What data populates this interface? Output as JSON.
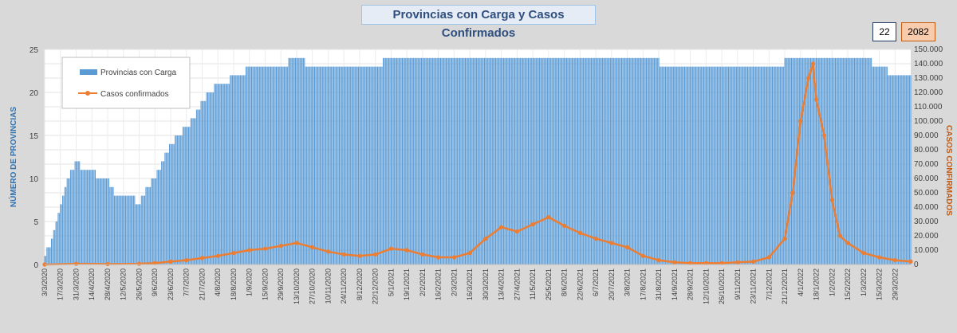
{
  "chart_data": {
    "type": "bar",
    "title": "Provincias con Carga y Casos Confirmados",
    "badges": {
      "provinces": "22",
      "cases": "2082"
    },
    "ylabel": "NÚMERO DE PROVINCIAS",
    "y2label": "CASOS CONFIRMADOS",
    "ylim": [
      0,
      25
    ],
    "y2lim": [
      0,
      150000
    ],
    "yticks": [
      "0",
      "5",
      "10",
      "15",
      "20",
      "25"
    ],
    "y2ticks": [
      "0",
      "10.000",
      "20.000",
      "30.000",
      "40.000",
      "50.000",
      "60.000",
      "70.000",
      "80.000",
      "90.000",
      "100.000",
      "110.000",
      "120.000",
      "130.000",
      "140.000",
      "150.000"
    ],
    "grid": true,
    "legend": "top-left",
    "x_start": "3/3/2020",
    "x_end": "12/4/2022",
    "xticks": [
      "3/3/2020",
      "17/3/2020",
      "31/3/2020",
      "14/4/2020",
      "28/4/2020",
      "12/5/2020",
      "26/5/2020",
      "9/6/2020",
      "23/6/2020",
      "7/7/2020",
      "21/7/2020",
      "4/8/2020",
      "18/8/2020",
      "1/9/2020",
      "15/9/2020",
      "29/9/2020",
      "13/10/2020",
      "27/10/2020",
      "10/11/2020",
      "24/11/2020",
      "8/12/2020",
      "22/12/2020",
      "5/1/2021",
      "19/1/2021",
      "2/2/2021",
      "16/2/2021",
      "2/3/2021",
      "16/3/2021",
      "30/3/2021",
      "13/4/2021",
      "27/4/2021",
      "11/5/2021",
      "25/5/2021",
      "8/6/2021",
      "22/6/2021",
      "6/7/2021",
      "20/7/2021",
      "3/8/2021",
      "17/8/2021",
      "31/8/2021",
      "14/9/2021",
      "28/9/2021",
      "12/10/2021",
      "26/10/2021",
      "9/11/2021",
      "23/11/2021",
      "7/12/2021",
      "21/12/2021",
      "4/1/2022",
      "18/1/2022",
      "1/2/2022",
      "15/2/2022",
      "1/3/2022",
      "15/3/2022",
      "29/3/2022"
    ],
    "series": [
      {
        "name": "Provincias con Carga",
        "axis": "left",
        "color": "#5b9bd5",
        "points": [
          [
            "3/3/2020",
            1
          ],
          [
            "10/3/2020",
            3
          ],
          [
            "17/3/2020",
            7
          ],
          [
            "24/3/2020",
            10
          ],
          [
            "31/3/2020",
            12
          ],
          [
            "7/4/2020",
            11
          ],
          [
            "14/4/2020",
            11
          ],
          [
            "21/4/2020",
            10
          ],
          [
            "28/4/2020",
            10
          ],
          [
            "5/5/2020",
            8
          ],
          [
            "12/5/2020",
            8
          ],
          [
            "19/5/2020",
            8
          ],
          [
            "26/5/2020",
            7
          ],
          [
            "2/6/2020",
            9
          ],
          [
            "9/6/2020",
            10
          ],
          [
            "16/6/2020",
            12
          ],
          [
            "23/6/2020",
            14
          ],
          [
            "30/6/2020",
            15
          ],
          [
            "7/7/2020",
            16
          ],
          [
            "14/7/2020",
            17
          ],
          [
            "21/7/2020",
            19
          ],
          [
            "28/7/2020",
            20
          ],
          [
            "4/8/2020",
            21
          ],
          [
            "11/8/2020",
            21
          ],
          [
            "18/8/2020",
            22
          ],
          [
            "25/8/2020",
            22
          ],
          [
            "1/9/2020",
            23
          ],
          [
            "8/9/2020",
            23
          ],
          [
            "15/9/2020",
            23
          ],
          [
            "22/9/2020",
            23
          ],
          [
            "29/9/2020",
            23
          ],
          [
            "13/10/2020",
            24
          ],
          [
            "27/10/2020",
            23
          ],
          [
            "10/11/2020",
            23
          ],
          [
            "24/11/2020",
            23
          ],
          [
            "8/12/2020",
            23
          ],
          [
            "22/12/2020",
            23
          ],
          [
            "5/1/2021",
            24
          ],
          [
            "19/1/2021",
            24
          ],
          [
            "2/2/2021",
            24
          ],
          [
            "2/3/2021",
            24
          ],
          [
            "30/3/2021",
            24
          ],
          [
            "27/4/2021",
            24
          ],
          [
            "25/5/2021",
            24
          ],
          [
            "22/6/2021",
            24
          ],
          [
            "20/7/2021",
            24
          ],
          [
            "17/8/2021",
            24
          ],
          [
            "14/9/2021",
            23
          ],
          [
            "12/10/2021",
            23
          ],
          [
            "9/11/2021",
            23
          ],
          [
            "7/12/2021",
            23
          ],
          [
            "4/1/2022",
            24
          ],
          [
            "1/2/2022",
            24
          ],
          [
            "1/3/2022",
            24
          ],
          [
            "15/3/2022",
            23
          ],
          [
            "29/3/2022",
            22
          ],
          [
            "12/4/2022",
            22
          ]
        ]
      },
      {
        "name": "Casos confirmados",
        "axis": "right",
        "color": "#ed7d31",
        "points": [
          [
            "3/3/2020",
            0
          ],
          [
            "31/3/2020",
            500
          ],
          [
            "28/4/2020",
            300
          ],
          [
            "26/5/2020",
            500
          ],
          [
            "9/6/2020",
            1000
          ],
          [
            "23/6/2020",
            2000
          ],
          [
            "7/7/2020",
            3000
          ],
          [
            "21/7/2020",
            4500
          ],
          [
            "4/8/2020",
            6000
          ],
          [
            "18/8/2020",
            8000
          ],
          [
            "1/9/2020",
            10000
          ],
          [
            "15/9/2020",
            11000
          ],
          [
            "29/9/2020",
            13000
          ],
          [
            "13/10/2020",
            15000
          ],
          [
            "27/10/2020",
            12000
          ],
          [
            "10/11/2020",
            9000
          ],
          [
            "24/11/2020",
            7000
          ],
          [
            "8/12/2020",
            6000
          ],
          [
            "22/12/2020",
            7000
          ],
          [
            "5/1/2021",
            11000
          ],
          [
            "19/1/2021",
            10000
          ],
          [
            "2/2/2021",
            7000
          ],
          [
            "16/2/2021",
            5000
          ],
          [
            "2/3/2021",
            5000
          ],
          [
            "16/3/2021",
            8000
          ],
          [
            "30/3/2021",
            18000
          ],
          [
            "13/4/2021",
            26000
          ],
          [
            "27/4/2021",
            23000
          ],
          [
            "11/5/2021",
            28000
          ],
          [
            "25/5/2021",
            33000
          ],
          [
            "8/6/2021",
            27000
          ],
          [
            "22/6/2021",
            22000
          ],
          [
            "6/7/2021",
            18000
          ],
          [
            "20/7/2021",
            15000
          ],
          [
            "3/8/2021",
            12000
          ],
          [
            "17/8/2021",
            6000
          ],
          [
            "31/8/2021",
            3000
          ],
          [
            "14/9/2021",
            1500
          ],
          [
            "28/9/2021",
            1000
          ],
          [
            "12/10/2021",
            1000
          ],
          [
            "26/10/2021",
            1000
          ],
          [
            "9/11/2021",
            1500
          ],
          [
            "23/11/2021",
            2000
          ],
          [
            "7/12/2021",
            5000
          ],
          [
            "21/12/2021",
            18000
          ],
          [
            "28/12/2021",
            50000
          ],
          [
            "4/1/2022",
            100000
          ],
          [
            "11/1/2022",
            130000
          ],
          [
            "15/1/2022",
            140000
          ],
          [
            "18/1/2022",
            115000
          ],
          [
            "25/1/2022",
            90000
          ],
          [
            "1/2/2022",
            45000
          ],
          [
            "8/2/2022",
            20000
          ],
          [
            "15/2/2022",
            15000
          ],
          [
            "1/3/2022",
            8000
          ],
          [
            "15/3/2022",
            5000
          ],
          [
            "29/3/2022",
            3000
          ],
          [
            "12/4/2022",
            2082
          ]
        ]
      }
    ]
  }
}
